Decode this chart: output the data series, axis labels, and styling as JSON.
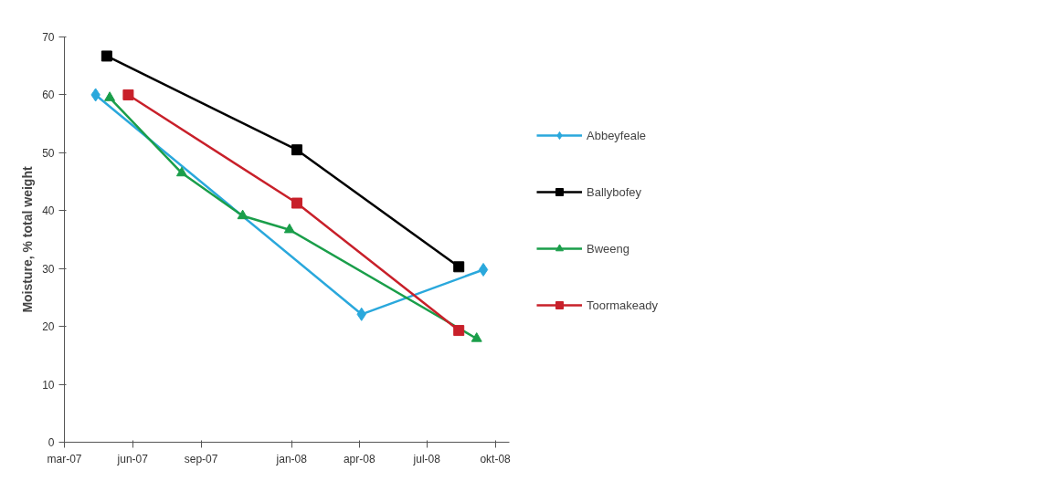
{
  "chart_data": {
    "type": "line",
    "ylabel": "Moisture, % total weight",
    "ylim": [
      0,
      70
    ],
    "yticks": [
      0,
      10,
      20,
      30,
      40,
      50,
      60,
      70
    ],
    "xlim": [
      "2007-03-01",
      "2008-10-20"
    ],
    "xticks": [
      {
        "value": "2007-03-01",
        "label": "mar-07"
      },
      {
        "value": "2007-06-01",
        "label": "jun-07"
      },
      {
        "value": "2007-09-01",
        "label": "sep-07"
      },
      {
        "value": "2008-01-01",
        "label": "jan-08"
      },
      {
        "value": "2008-04-01",
        "label": "apr-08"
      },
      {
        "value": "2008-07-01",
        "label": "jul-08"
      },
      {
        "value": "2008-10-01",
        "label": "okt-08"
      }
    ],
    "grid": false,
    "legend": "right",
    "line_style": "solid",
    "series": [
      {
        "name": "Abbeyfeale",
        "color": "#2aa8dc",
        "marker": "diamond",
        "x": [
          "2007-04-12",
          "2008-04-04",
          "2008-09-15"
        ],
        "values": [
          60,
          22.1,
          29.8
        ]
      },
      {
        "name": "Ballybofey",
        "color": "#000000",
        "marker": "square",
        "x": [
          "2007-04-27",
          "2008-01-08",
          "2008-08-13"
        ],
        "values": [
          66.7,
          50.5,
          30.3
        ]
      },
      {
        "name": "Bweeng",
        "color": "#1a9e4a",
        "marker": "triangle",
        "x": [
          "2007-05-01",
          "2007-08-06",
          "2007-10-27",
          "2007-12-29",
          "2008-09-06"
        ],
        "values": [
          59.5,
          46.5,
          39.1,
          36.7,
          17.9
        ]
      },
      {
        "name": "Toormakeady",
        "color": "#c8202a",
        "marker": "square",
        "x": [
          "2007-05-26",
          "2008-01-08",
          "2008-08-13"
        ],
        "values": [
          60,
          41.3,
          19.3
        ]
      }
    ]
  }
}
